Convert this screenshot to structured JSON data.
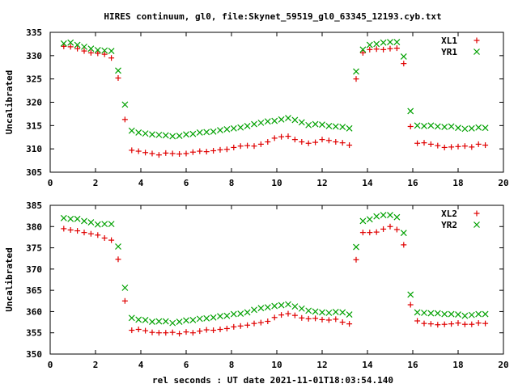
{
  "title": "HIRES continuum, gl0, file:Skynet_59519_gl0_63345_12193.cyb.txt",
  "xlabel": "rel seconds : UT date 2021-11-01T18:03:54.140",
  "colors": {
    "plus_series": "#e00000",
    "cross_series": "#00a000",
    "axes": "#000000"
  },
  "chart_data": [
    {
      "type": "scatter",
      "ylabel": "Uncalibrated",
      "xlim": [
        0,
        20
      ],
      "ylim": [
        305,
        335
      ],
      "xticks": [
        "0",
        "2",
        "4",
        "6",
        "8",
        "10",
        "12",
        "14",
        "16",
        "18",
        "20"
      ],
      "yticks": [
        "305",
        "310",
        "315",
        "320",
        "325",
        "330",
        "335"
      ],
      "legend_position": "top-right",
      "x": [
        0.6,
        0.9,
        1.2,
        1.5,
        1.8,
        2.1,
        2.4,
        2.7,
        3.0,
        3.3,
        3.6,
        3.9,
        4.2,
        4.5,
        4.8,
        5.1,
        5.4,
        5.7,
        6.0,
        6.3,
        6.6,
        6.9,
        7.2,
        7.5,
        7.8,
        8.1,
        8.4,
        8.7,
        9.0,
        9.3,
        9.6,
        9.9,
        10.2,
        10.5,
        10.8,
        11.1,
        11.4,
        11.7,
        12.0,
        12.3,
        12.6,
        12.9,
        13.2,
        13.5,
        13.8,
        14.1,
        14.4,
        14.7,
        15.0,
        15.3,
        15.6,
        15.9,
        16.2,
        16.5,
        16.8,
        17.1,
        17.4,
        17.7,
        18.0,
        18.3,
        18.6,
        18.9,
        19.2
      ],
      "series": [
        {
          "name": "XL1",
          "marker": "plus",
          "values": [
            332.0,
            331.9,
            331.5,
            331.0,
            330.6,
            330.5,
            330.3,
            329.5,
            325.2,
            316.3,
            309.7,
            309.5,
            309.2,
            309.0,
            308.7,
            309.1,
            309.0,
            308.9,
            309.0,
            309.3,
            309.5,
            309.4,
            309.6,
            309.8,
            309.9,
            310.3,
            310.6,
            310.7,
            310.6,
            311.0,
            311.5,
            312.3,
            312.6,
            312.7,
            312.0,
            311.5,
            311.2,
            311.4,
            312.0,
            311.8,
            311.5,
            311.3,
            310.8,
            325.0,
            330.6,
            331.3,
            331.4,
            331.3,
            331.5,
            331.6,
            328.3,
            314.8,
            311.2,
            311.3,
            311.0,
            310.7,
            310.3,
            310.4,
            310.5,
            310.6,
            310.4,
            311.0,
            310.8
          ]
        },
        {
          "name": "YR1",
          "marker": "cross",
          "values": [
            332.6,
            332.8,
            332.3,
            331.9,
            331.5,
            331.2,
            331.1,
            331.0,
            326.8,
            319.5,
            313.9,
            313.5,
            313.3,
            313.1,
            313.0,
            312.9,
            312.7,
            312.8,
            313.1,
            313.2,
            313.5,
            313.6,
            313.7,
            314.0,
            314.2,
            314.4,
            314.6,
            314.9,
            315.3,
            315.6,
            315.9,
            316.0,
            316.3,
            316.6,
            316.2,
            315.7,
            315.1,
            315.3,
            315.2,
            314.9,
            314.8,
            314.7,
            314.4,
            326.6,
            331.3,
            332.3,
            332.5,
            332.8,
            332.9,
            332.9,
            329.8,
            318.1,
            315.0,
            314.9,
            315.0,
            314.8,
            314.7,
            314.8,
            314.5,
            314.3,
            314.4,
            314.6,
            314.5
          ]
        }
      ]
    },
    {
      "type": "scatter",
      "ylabel": "Uncalibrated",
      "xlim": [
        0,
        20
      ],
      "ylim": [
        350,
        385
      ],
      "xticks": [
        "0",
        "2",
        "4",
        "6",
        "8",
        "10",
        "12",
        "14",
        "16",
        "18",
        "20"
      ],
      "yticks": [
        "350",
        "355",
        "360",
        "365",
        "370",
        "375",
        "380",
        "385"
      ],
      "legend_position": "top-right",
      "x": [
        0.6,
        0.9,
        1.2,
        1.5,
        1.8,
        2.1,
        2.4,
        2.7,
        3.0,
        3.3,
        3.6,
        3.9,
        4.2,
        4.5,
        4.8,
        5.1,
        5.4,
        5.7,
        6.0,
        6.3,
        6.6,
        6.9,
        7.2,
        7.5,
        7.8,
        8.1,
        8.4,
        8.7,
        9.0,
        9.3,
        9.6,
        9.9,
        10.2,
        10.5,
        10.8,
        11.1,
        11.4,
        11.7,
        12.0,
        12.3,
        12.6,
        12.9,
        13.2,
        13.5,
        13.8,
        14.1,
        14.4,
        14.7,
        15.0,
        15.3,
        15.6,
        15.9,
        16.2,
        16.5,
        16.8,
        17.1,
        17.4,
        17.7,
        18.0,
        18.3,
        18.6,
        18.9,
        19.2
      ],
      "series": [
        {
          "name": "XL2",
          "marker": "plus",
          "values": [
            379.5,
            379.2,
            379.0,
            378.6,
            378.3,
            378.0,
            377.3,
            376.8,
            372.3,
            362.5,
            355.6,
            355.8,
            355.5,
            355.1,
            355.0,
            355.0,
            355.1,
            354.8,
            355.2,
            355.0,
            355.4,
            355.7,
            355.6,
            355.8,
            356.0,
            356.4,
            356.6,
            356.8,
            357.2,
            357.4,
            357.7,
            358.6,
            359.2,
            359.5,
            359.1,
            358.5,
            358.3,
            358.4,
            358.1,
            358.0,
            358.2,
            357.5,
            357.1,
            372.2,
            378.6,
            378.6,
            378.7,
            379.4,
            380.0,
            379.3,
            375.7,
            361.6,
            357.8,
            357.2,
            357.1,
            356.9,
            357.0,
            357.1,
            357.3,
            357.0,
            357.0,
            357.3,
            357.2
          ]
        },
        {
          "name": "YR2",
          "marker": "cross",
          "values": [
            382.0,
            381.8,
            381.8,
            381.3,
            381.0,
            380.5,
            380.6,
            380.6,
            375.3,
            365.6,
            358.5,
            358.1,
            358.0,
            357.6,
            357.7,
            357.7,
            357.3,
            357.6,
            357.9,
            358.0,
            358.3,
            358.4,
            358.6,
            358.9,
            359.0,
            359.4,
            359.5,
            359.8,
            360.4,
            360.8,
            361.0,
            361.3,
            361.5,
            361.7,
            361.2,
            360.7,
            360.2,
            360.0,
            359.8,
            359.7,
            359.9,
            359.8,
            359.3,
            375.2,
            381.3,
            381.7,
            382.4,
            382.7,
            382.7,
            382.2,
            378.5,
            364.0,
            359.8,
            359.7,
            359.6,
            359.6,
            359.4,
            359.4,
            359.3,
            359.0,
            359.2,
            359.4,
            359.4
          ]
        }
      ]
    }
  ]
}
